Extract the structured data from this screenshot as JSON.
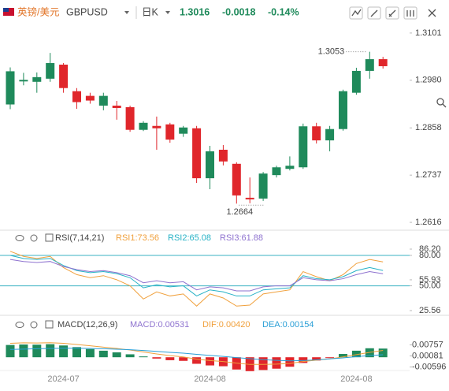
{
  "header": {
    "pair_cn": "英镑/美元",
    "symbol": "GBPUSD",
    "period": "日K",
    "price": 1.3016,
    "change": -0.0018,
    "change_pct": "-0.14%"
  },
  "chart_data": [
    {
      "type": "candlestick",
      "categories": [
        null,
        null,
        null,
        null,
        "2024-07",
        null,
        null,
        null,
        null,
        null,
        null,
        null,
        null,
        null,
        null,
        "2024-08",
        null,
        null,
        null,
        null,
        null,
        null,
        null,
        null,
        null,
        null,
        "2024-08",
        null,
        null
      ],
      "open": [
        1.2918,
        1.2977,
        1.2976,
        1.2984,
        1.302,
        1.2952,
        1.294,
        1.2915,
        1.2915,
        1.2911,
        1.2853,
        1.2863,
        1.2867,
        1.2843,
        1.2857,
        1.2729,
        1.2802,
        1.2766,
        1.2679,
        1.2677,
        1.2737,
        1.2753,
        1.2757,
        1.2862,
        1.2826,
        1.2855,
        1.2948,
        1.3004,
        1.3034
      ],
      "high": [
        1.3013,
        1.2999,
        1.3,
        1.305,
        1.3024,
        1.296,
        1.2948,
        1.2948,
        1.2927,
        1.2915,
        1.2875,
        1.2887,
        1.2871,
        1.2863,
        1.2863,
        1.2812,
        1.2814,
        1.277,
        1.2731,
        1.2745,
        1.2761,
        1.2785,
        1.2869,
        1.2871,
        1.2863,
        1.2956,
        1.3012,
        1.3053,
        1.304
      ],
      "low": [
        1.2906,
        1.2967,
        1.2948,
        1.2976,
        1.2948,
        1.2907,
        1.292,
        1.2903,
        1.2879,
        1.2848,
        1.285,
        1.2802,
        1.282,
        1.2835,
        1.2717,
        1.2701,
        1.2762,
        1.2664,
        1.2665,
        1.2671,
        1.2731,
        1.2749,
        1.2753,
        1.2818,
        1.2798,
        1.2851,
        1.2943,
        1.2984,
        1.301
      ],
      "close": [
        1.3003,
        1.2981,
        1.2988,
        1.3024,
        1.296,
        1.2924,
        1.2928,
        1.294,
        1.2909,
        1.2853,
        1.2871,
        1.2857,
        1.2828,
        1.2859,
        1.2729,
        1.2798,
        1.2772,
        1.2685,
        1.2675,
        1.2741,
        1.2757,
        1.2761,
        1.2862,
        1.2826,
        1.2855,
        1.2952,
        1.3004,
        1.3034,
        1.3016
      ],
      "up_color": "#1f8a5b",
      "down_color": "#e0262b",
      "ylim": [
        1.26,
        1.3125
      ],
      "yticks": [
        1.3101,
        {
          "value": 1.298,
          "label": "1.2980"
        },
        1.2858,
        1.2737,
        1.2616
      ],
      "annotations": {
        "high": "1.3053",
        "low": "1.2664"
      }
    },
    {
      "type": "line",
      "title": "RSI(7,14,21)",
      "ylim": [
        25.56,
        86.2
      ],
      "yticks": [
        {
          "value": 86.2,
          "label": "86.20"
        },
        {
          "value": 80,
          "label": "80.00"
        },
        55.93,
        {
          "value": 50,
          "label": "50.00"
        },
        25.56
      ],
      "hlines": [
        80,
        50
      ],
      "hline_color": "#3bb3c3",
      "series": [
        {
          "name": "RSI1:73.56",
          "color": "#f0a03c",
          "values": [
            84,
            79,
            77,
            79,
            68,
            61,
            58,
            60,
            56,
            50,
            37,
            44,
            40,
            42,
            30,
            42,
            38,
            30,
            31,
            42,
            44,
            46,
            64,
            59,
            55,
            61,
            72,
            76,
            73.56
          ]
        },
        {
          "name": "RSI2:65.08",
          "color": "#26b2c6",
          "values": [
            80,
            77,
            76,
            77,
            70,
            65,
            63,
            64,
            62,
            58,
            48,
            51,
            49,
            50,
            40,
            46,
            44,
            40,
            40,
            46,
            47,
            48,
            60,
            57,
            56,
            59,
            65,
            68,
            65.08
          ]
        },
        {
          "name": "RSI3:61.88",
          "color": "#8e72cf",
          "values": [
            76,
            74,
            73,
            74,
            69,
            66,
            64,
            65,
            63,
            60,
            53,
            55,
            53,
            54,
            46,
            49,
            48,
            45,
            45,
            49,
            50,
            50,
            58,
            56,
            55,
            57,
            61,
            64,
            61.88
          ]
        }
      ]
    },
    {
      "type": "combo",
      "title": "MACD(12,26,9)",
      "ylim": [
        -0.011,
        0.016
      ],
      "yticks": [
        0.00757,
        0.00081,
        -0.00596
      ],
      "series": [
        {
          "name": "MACD:0.00531",
          "type": "bar",
          "color": "#8e72cf",
          "up_color": "#1f8a5b",
          "down_color": "#e0262b",
          "values": [
            0.0075,
            0.0078,
            0.0077,
            0.008,
            0.0072,
            0.0062,
            0.005,
            0.004,
            0.003,
            0.0018,
            0.0005,
            -0.0008,
            -0.0018,
            -0.0022,
            -0.004,
            -0.005,
            -0.0055,
            -0.0075,
            -0.0085,
            -0.0078,
            -0.007,
            -0.0058,
            -0.0035,
            -0.002,
            -0.0005,
            0.002,
            0.004,
            0.0055,
            0.00531
          ]
        },
        {
          "name": "DIF:0.00420",
          "type": "line",
          "color": "#f0a03c",
          "values": [
            0.0085,
            0.0088,
            0.0087,
            0.0089,
            0.0085,
            0.0078,
            0.007,
            0.0062,
            0.0054,
            0.0044,
            0.0032,
            0.002,
            0.001,
            0.0002,
            -0.0012,
            -0.002,
            -0.0026,
            -0.0036,
            -0.0044,
            -0.0044,
            -0.0042,
            -0.0038,
            -0.0026,
            -0.0018,
            -0.001,
            0.0002,
            0.0016,
            0.003,
            0.0042
          ]
        },
        {
          "name": "DEA:0.00154",
          "type": "line",
          "color": "#2a9fd6",
          "values": [
            0.0048,
            0.005,
            0.0052,
            0.0054,
            0.0055,
            0.0055,
            0.0054,
            0.0052,
            0.0049,
            0.0046,
            0.0041,
            0.0036,
            0.003,
            0.0025,
            0.0018,
            0.0011,
            0.0005,
            -0.0002,
            -0.0009,
            -0.0015,
            -0.0019,
            -0.0022,
            -0.002,
            -0.0016,
            -0.001,
            -0.0004,
            0.0004,
            0.001,
            0.00154
          ]
        }
      ]
    }
  ]
}
